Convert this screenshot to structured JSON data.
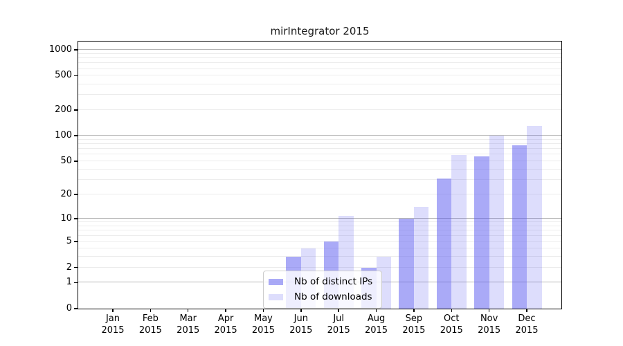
{
  "title": "mirIntegrator 2015",
  "colors": {
    "bar_dark": "rgba(85,85,240,0.5)",
    "bar_light": "rgba(85,85,240,0.2)",
    "bar_dark_on_white": "#aaaaf7",
    "bar_light_on_white": "#dddcfc",
    "grid_major": "#b4b4b4",
    "grid_minor": "#ececec",
    "axis": "#000000",
    "legend_border": "#cccccc"
  },
  "chart_data": {
    "type": "bar",
    "title": "mirIntegrator 2015",
    "xlabel": "",
    "ylabel": "",
    "scale": "log10(1+y)",
    "ylim": [
      0,
      1000
    ],
    "grid": true,
    "legend_position": "bottom-center",
    "categories": [
      "Jan",
      "Feb",
      "Mar",
      "Apr",
      "May",
      "Jun",
      "Jul",
      "Aug",
      "Sep",
      "Oct",
      "Nov",
      "Dec"
    ],
    "year": "2015",
    "y_ticks": [
      0,
      1,
      2,
      5,
      10,
      20,
      50,
      100,
      200,
      500,
      1000
    ],
    "series": [
      {
        "name": "Nb of distinct IPs",
        "values": [
          0,
          0,
          0,
          0,
          0,
          3,
          5,
          2,
          10,
          31,
          57,
          78
        ]
      },
      {
        "name": "Nb of downloads",
        "values": [
          0,
          0,
          0,
          0,
          0,
          4,
          11,
          3,
          14,
          60,
          101,
          130
        ]
      }
    ]
  }
}
